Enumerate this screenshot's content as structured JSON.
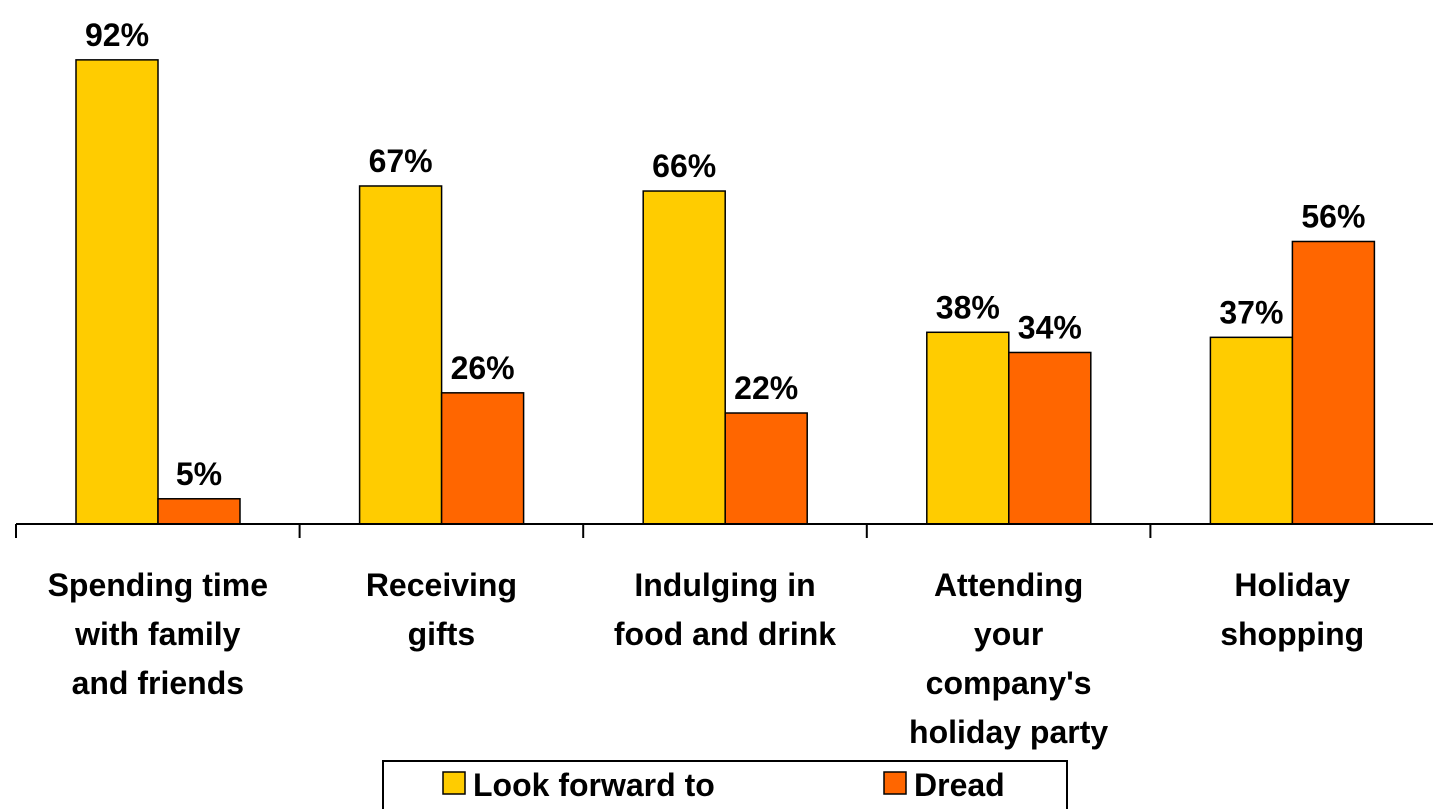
{
  "chart_data": {
    "type": "bar",
    "categories": [
      [
        "Spending time",
        "with family",
        "and friends"
      ],
      [
        "Receiving",
        "gifts"
      ],
      [
        "Indulging in",
        "food and drink"
      ],
      [
        "Attending",
        "your",
        "company's",
        "holiday party"
      ],
      [
        "Holiday",
        "shopping"
      ]
    ],
    "series": [
      {
        "name": "Look forward to",
        "color": "#FFCC00",
        "values": [
          92,
          67,
          66,
          38,
          37
        ],
        "labels": [
          "92%",
          "67%",
          "66%",
          "38%",
          "37%"
        ]
      },
      {
        "name": "Dread",
        "color": "#FF6600",
        "values": [
          5,
          26,
          22,
          34,
          56
        ],
        "labels": [
          "5%",
          "26%",
          "22%",
          "34%",
          "56%"
        ]
      }
    ],
    "ylim": [
      0,
      100
    ],
    "grid": false,
    "legend_position": "bottom-center"
  }
}
